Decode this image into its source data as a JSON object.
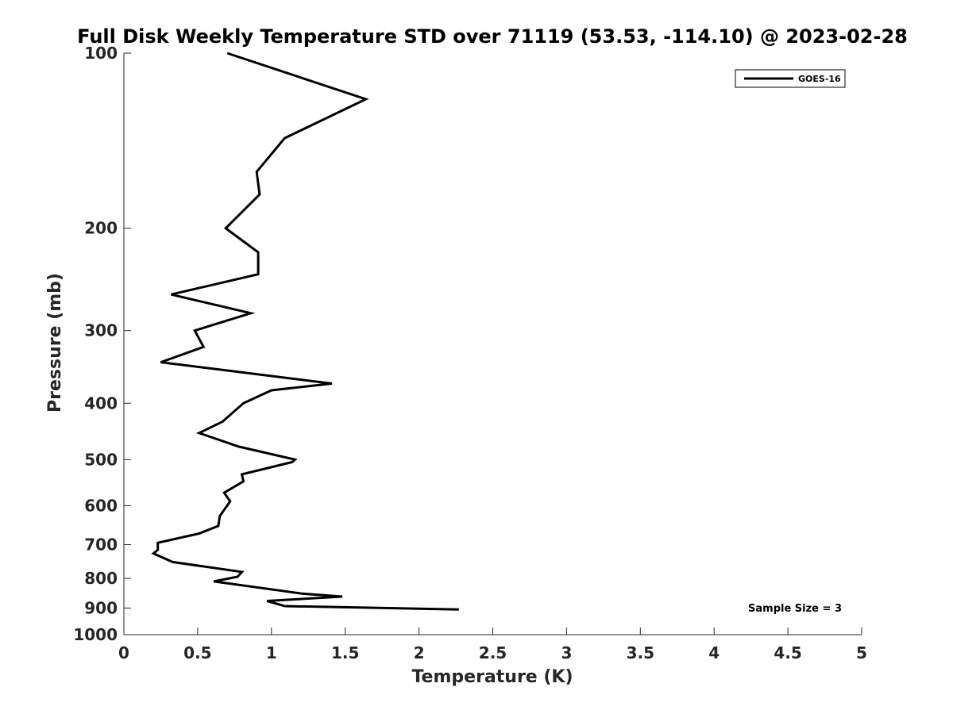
{
  "chart_data": {
    "type": "line",
    "title": "Full Disk Weekly Temperature STD over 71119 (53.53, -114.10) @ 2023-02-28",
    "xlabel": "Temperature (K)",
    "ylabel": "Pressure (mb)",
    "xlim": [
      0,
      5
    ],
    "ylim": [
      1000,
      100
    ],
    "yscale": "log",
    "y_reversed": true,
    "grid": false,
    "legend_position": "top-right",
    "xticks": [
      0,
      0.5,
      1,
      1.5,
      2,
      2.5,
      3,
      3.5,
      4,
      4.5,
      5
    ],
    "xtick_labels": [
      "0",
      "0.5",
      "1",
      "1.5",
      "2",
      "2.5",
      "3",
      "3.5",
      "4",
      "4.5",
      "5"
    ],
    "yticks": [
      100,
      200,
      300,
      400,
      500,
      600,
      700,
      800,
      900,
      1000
    ],
    "ytick_labels": [
      "100",
      "200",
      "300",
      "400",
      "500",
      "600",
      "700",
      "800",
      "900",
      "1000"
    ],
    "series": [
      {
        "name": "GOES-16",
        "color": "#000000",
        "points": [
          [
            0.7,
            100
          ],
          [
            1.64,
            120
          ],
          [
            1.09,
            140
          ],
          [
            0.9,
            160
          ],
          [
            0.92,
            175
          ],
          [
            0.69,
            200
          ],
          [
            0.91,
            220
          ],
          [
            0.91,
            240
          ],
          [
            0.32,
            260
          ],
          [
            0.86,
            280
          ],
          [
            0.48,
            300
          ],
          [
            0.54,
            320
          ],
          [
            0.25,
            340
          ],
          [
            1.41,
            370
          ],
          [
            1.0,
            380
          ],
          [
            0.81,
            400
          ],
          [
            0.67,
            430
          ],
          [
            0.51,
            450
          ],
          [
            0.78,
            475
          ],
          [
            1.16,
            500
          ],
          [
            1.14,
            505
          ],
          [
            0.8,
            530
          ],
          [
            0.81,
            545
          ],
          [
            0.68,
            570
          ],
          [
            0.72,
            590
          ],
          [
            0.65,
            625
          ],
          [
            0.64,
            650
          ],
          [
            0.51,
            670
          ],
          [
            0.23,
            695
          ],
          [
            0.23,
            715
          ],
          [
            0.2,
            725
          ],
          [
            0.33,
            750
          ],
          [
            0.8,
            780
          ],
          [
            0.77,
            795
          ],
          [
            0.61,
            810
          ],
          [
            1.21,
            850
          ],
          [
            1.48,
            860
          ],
          [
            0.97,
            875
          ],
          [
            1.09,
            893
          ],
          [
            2.27,
            905
          ]
        ]
      }
    ],
    "annotation": "Sample Size = 3"
  }
}
